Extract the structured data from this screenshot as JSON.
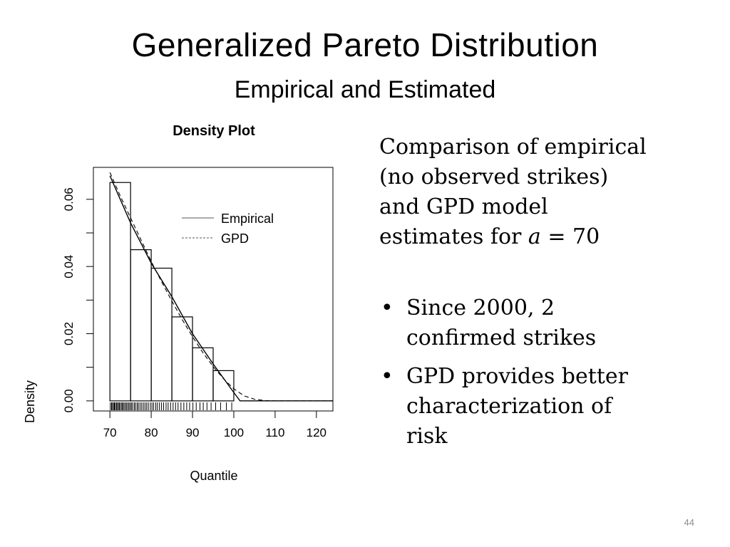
{
  "slide": {
    "title": "Generalized Pareto Distribution",
    "subtitle": "Empirical and Estimated",
    "page_number": "44"
  },
  "description": {
    "line1": "Comparison of empirical",
    "line2": "(no observed strikes)",
    "line3": "and GPD model",
    "line4_prefix": "estimates for ",
    "line4_var": "a",
    "line4_suffix": " = 70"
  },
  "bullets": [
    {
      "line1": "Since 2000, 2",
      "line2": "confirmed strikes"
    },
    {
      "line1": "GPD provides better",
      "line2": "characterization of",
      "line3": "risk"
    }
  ],
  "icons": {
    "bullet": "•"
  },
  "chart_data": {
    "type": "histogram",
    "title": "Density Plot",
    "xlabel": "Quantile",
    "ylabel": "Density",
    "xlim": [
      66,
      124
    ],
    "ylim": [
      -0.003,
      0.0695
    ],
    "xticks": [
      70,
      80,
      90,
      100,
      110,
      120
    ],
    "yticks": [
      0.0,
      0.02,
      0.04,
      0.06
    ],
    "ytick_labels": [
      "0.00",
      "0.02",
      "0.04",
      "0.06"
    ],
    "grid": false,
    "legend_position": "top-right",
    "legend": [
      {
        "label": "Empirical",
        "style": "solid"
      },
      {
        "label": "GPD",
        "style": "dashed"
      }
    ],
    "bins": [
      {
        "x0": 70,
        "x1": 75,
        "density": 0.065
      },
      {
        "x0": 75,
        "x1": 80,
        "density": 0.045
      },
      {
        "x0": 80,
        "x1": 85,
        "density": 0.0395
      },
      {
        "x0": 85,
        "x1": 90,
        "density": 0.025
      },
      {
        "x0": 90,
        "x1": 95,
        "density": 0.0158
      },
      {
        "x0": 95,
        "x1": 100,
        "density": 0.009
      }
    ],
    "series": [
      {
        "name": "Empirical",
        "style": "solid",
        "x": [
          70,
          75,
          80,
          85,
          90,
          95,
          100,
          101.5,
          124
        ],
        "y": [
          0.067,
          0.053,
          0.041,
          0.031,
          0.02,
          0.011,
          0.0025,
          0.0,
          0.0
        ]
      },
      {
        "name": "GPD",
        "style": "dashed",
        "x": [
          70,
          72.5,
          75,
          77.5,
          80,
          82.5,
          85,
          87.5,
          90,
          92.5,
          95,
          97.5,
          100,
          102.5,
          105,
          107.5,
          110,
          115,
          124
        ],
        "y": [
          0.068,
          0.061,
          0.0545,
          0.048,
          0.0415,
          0.0355,
          0.0297,
          0.0242,
          0.0191,
          0.0144,
          0.0102,
          0.0066,
          0.0036,
          0.0015,
          0.0005,
          0.0001,
          0.0,
          0.0,
          0.0
        ]
      }
    ],
    "rug": [
      70.1,
      70.4,
      70.6,
      70.9,
      71.1,
      71.3,
      71.6,
      71.8,
      72.1,
      72.3,
      72.6,
      72.9,
      73.1,
      73.4,
      73.7,
      74.0,
      74.3,
      74.6,
      74.9,
      75.2,
      75.5,
      75.9,
      76.2,
      76.6,
      76.9,
      77.3,
      77.7,
      78.1,
      78.5,
      78.9,
      79.3,
      79.8,
      80.2,
      80.6,
      81.1,
      81.5,
      82.0,
      82.5,
      83.0,
      83.6,
      84.1,
      84.7,
      85.3,
      85.9,
      86.5,
      87.2,
      87.9,
      88.6,
      89.3,
      90.1,
      90.9,
      91.8,
      92.6,
      93.5,
      94.5,
      95.6,
      96.8,
      98.2,
      99.5
    ]
  }
}
